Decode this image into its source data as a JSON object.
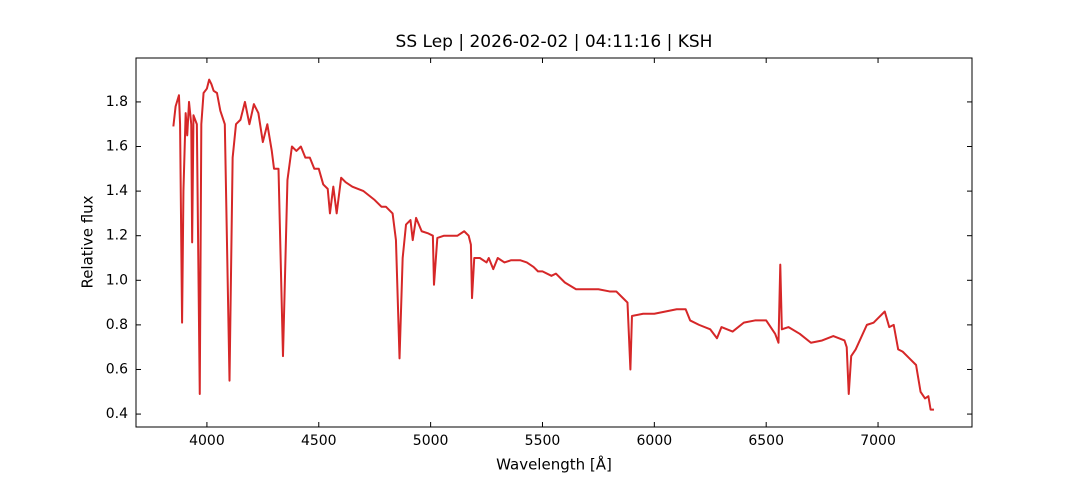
{
  "chart_data": {
    "type": "line",
    "title": "SS Lep | 2026-02-02 | 04:11:16 | KSH",
    "x_label": "Wavelength [Å]",
    "y_label": "Relative flux",
    "color": "#d62728",
    "xlim": [
      3683,
      7420
    ],
    "ylim": [
      0.342,
      1.997
    ],
    "xticks": [
      4000,
      4500,
      5000,
      5500,
      6000,
      6500,
      7000
    ],
    "yticks": [
      0.4,
      0.6,
      0.8,
      {
        "value": 1,
        "label": "1.0"
      },
      1.2,
      1.4,
      1.6,
      1.8
    ],
    "x": [
      3850,
      3860,
      3875,
      3880,
      3889,
      3895,
      3905,
      3912,
      3920,
      3930,
      3934,
      3940,
      3955,
      3968,
      3975,
      3985,
      4000,
      4010,
      4020,
      4030,
      4045,
      4060,
      4080,
      4101,
      4115,
      4130,
      4150,
      4170,
      4190,
      4210,
      4230,
      4250,
      4270,
      4290,
      4300,
      4320,
      4340,
      4360,
      4380,
      4400,
      4420,
      4440,
      4460,
      4480,
      4500,
      4520,
      4540,
      4550,
      4565,
      4580,
      4600,
      4620,
      4650,
      4700,
      4750,
      4780,
      4800,
      4830,
      4845,
      4861,
      4875,
      4890,
      4910,
      4920,
      4935,
      4960,
      4990,
      5010,
      5015,
      5030,
      5060,
      5090,
      5120,
      5150,
      5170,
      5180,
      5185,
      5195,
      5220,
      5250,
      5260,
      5280,
      5300,
      5330,
      5360,
      5400,
      5430,
      5460,
      5480,
      5500,
      5540,
      5560,
      5600,
      5650,
      5700,
      5750,
      5800,
      5830,
      5860,
      5880,
      5893,
      5900,
      5950,
      6000,
      6050,
      6100,
      6140,
      6160,
      6200,
      6250,
      6280,
      6300,
      6350,
      6400,
      6450,
      6500,
      6540,
      6555,
      6563,
      6570,
      6600,
      6650,
      6700,
      6750,
      6800,
      6850,
      6860,
      6869,
      6880,
      6900,
      6950,
      6980,
      7000,
      7030,
      7050,
      7070,
      7090,
      7110,
      7140,
      7170,
      7190,
      7210,
      7225,
      7235,
      7250
    ],
    "values": [
      1.69,
      1.78,
      1.83,
      1.7,
      0.81,
      1.4,
      1.75,
      1.65,
      1.8,
      1.7,
      1.17,
      1.74,
      1.7,
      0.49,
      1.7,
      1.84,
      1.86,
      1.9,
      1.88,
      1.85,
      1.84,
      1.76,
      1.7,
      0.55,
      1.55,
      1.7,
      1.72,
      1.8,
      1.7,
      1.79,
      1.75,
      1.62,
      1.7,
      1.58,
      1.5,
      1.5,
      0.66,
      1.45,
      1.6,
      1.58,
      1.6,
      1.55,
      1.55,
      1.5,
      1.5,
      1.43,
      1.41,
      1.3,
      1.42,
      1.3,
      1.46,
      1.44,
      1.42,
      1.4,
      1.36,
      1.33,
      1.33,
      1.3,
      1.18,
      0.65,
      1.1,
      1.25,
      1.27,
      1.18,
      1.28,
      1.22,
      1.21,
      1.2,
      0.98,
      1.19,
      1.2,
      1.2,
      1.2,
      1.22,
      1.2,
      1.16,
      0.92,
      1.1,
      1.1,
      1.08,
      1.1,
      1.05,
      1.1,
      1.08,
      1.09,
      1.09,
      1.08,
      1.06,
      1.04,
      1.04,
      1.02,
      1.03,
      0.99,
      0.96,
      0.96,
      0.96,
      0.95,
      0.95,
      0.92,
      0.9,
      0.6,
      0.84,
      0.85,
      0.85,
      0.86,
      0.87,
      0.87,
      0.82,
      0.8,
      0.78,
      0.74,
      0.79,
      0.77,
      0.81,
      0.82,
      0.82,
      0.76,
      0.72,
      1.07,
      0.78,
      0.79,
      0.76,
      0.72,
      0.73,
      0.75,
      0.73,
      0.7,
      0.49,
      0.66,
      0.69,
      0.8,
      0.81,
      0.83,
      0.86,
      0.79,
      0.8,
      0.69,
      0.68,
      0.65,
      0.62,
      0.5,
      0.47,
      0.48,
      0.42,
      0.42
    ]
  }
}
